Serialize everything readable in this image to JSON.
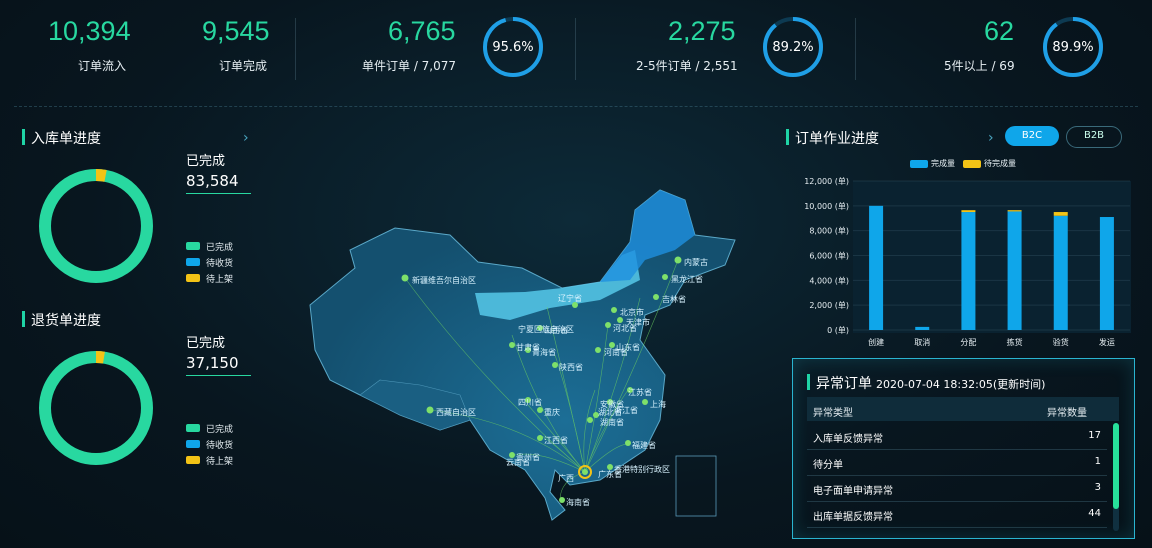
{
  "kpis": {
    "inflow": {
      "value": "10,394",
      "label": "订单流入"
    },
    "done": {
      "value": "9,545",
      "label": "订单完成"
    },
    "single": {
      "value": "6,765",
      "label": "单件订单 / 7,077",
      "pct": "95.6%",
      "ratio": 0.956
    },
    "multi": {
      "value": "2,275",
      "label": "2-5件订单 / 2,551",
      "pct": "89.2%",
      "ratio": 0.892
    },
    "five": {
      "value": "62",
      "label": "5件以上 / 69",
      "pct": "89.9%",
      "ratio": 0.899
    }
  },
  "inbound": {
    "title": "入库单进度",
    "done_label": "已完成",
    "done_value": "83,584",
    "legend": [
      "已完成",
      "待收货",
      "待上架"
    ],
    "ratio_done": 0.97
  },
  "returns": {
    "title": "退货单进度",
    "done_label": "已完成",
    "done_value": "37,150",
    "legend": [
      "已完成",
      "待收货",
      "待上架"
    ],
    "ratio_done": 0.975
  },
  "order_progress": {
    "title": "订单作业进度",
    "tabs": [
      "B2C",
      "B2B"
    ],
    "active_tab": "B2C"
  },
  "chart_data": {
    "type": "bar",
    "categories": [
      "创建",
      "取消",
      "分配",
      "拣货",
      "验货",
      "发运"
    ],
    "series": [
      {
        "name": "完成量",
        "values": [
          10000,
          250,
          9500,
          9550,
          9200,
          9100
        ]
      },
      {
        "name": "待完成量",
        "values": [
          0,
          0,
          150,
          100,
          300,
          0
        ]
      }
    ],
    "yticks": [
      "0 (单)",
      "2,000 (单)",
      "4,000 (单)",
      "6,000 (单)",
      "8,000 (单)",
      "10,000 (单)",
      "12,000 (单)"
    ],
    "ylim": [
      0,
      12000
    ],
    "legend_position": "top"
  },
  "abnormal": {
    "title": "异常订单",
    "timestamp": "2020-07-04 18:32:05(更新时间)",
    "col_type": "异常类型",
    "col_count": "异常数量",
    "rows": [
      {
        "type": "入库单反馈异常",
        "count": "17"
      },
      {
        "type": "待分单",
        "count": "1"
      },
      {
        "type": "电子面单申请异常",
        "count": "3"
      },
      {
        "type": "出库单据反馈异常",
        "count": "44"
      }
    ]
  },
  "map": {
    "labels": [
      "新疆维吾尔自治区",
      "西藏自治区",
      "内蒙古",
      "黑龙江省",
      "吉林省",
      "辽宁省",
      "北京市",
      "天津市",
      "河北省",
      "山西省",
      "宁夏回族自治区",
      "甘肃省",
      "青海省",
      "陕西省",
      "山东省",
      "河南省",
      "江苏省",
      "上海",
      "安徽省",
      "浙江省",
      "四川省",
      "重庆",
      "湖北省",
      "湖南省",
      "江西省",
      "贵州省",
      "福建省",
      "云南省",
      "广西",
      "广东省",
      "香港特别行政区",
      "海南省"
    ]
  },
  "colors": {
    "green": "#28d8a0",
    "blue": "#0fa6ea",
    "yellow": "#f3c316"
  }
}
